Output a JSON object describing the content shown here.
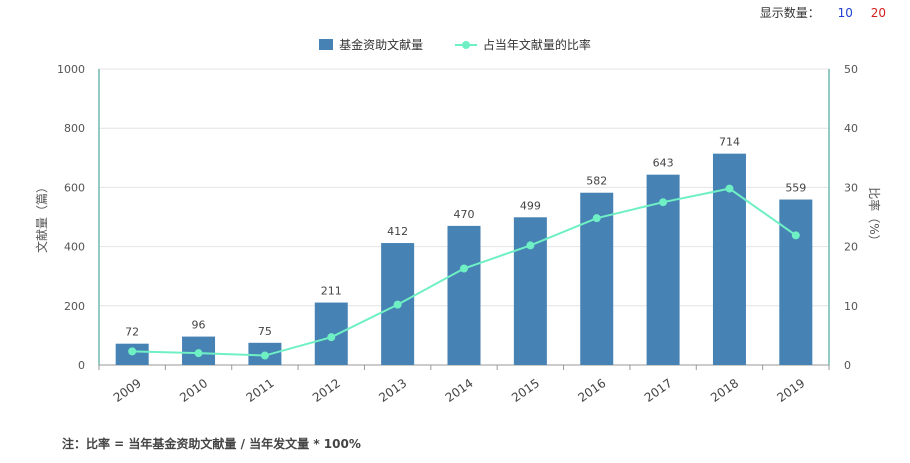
{
  "top_bar": {
    "label": "显示数量：",
    "options": [
      "10",
      "20"
    ]
  },
  "legend": {
    "bar_label": "基金资助文献量",
    "line_label": "占当年文献量的比率"
  },
  "note": "注：比率 = 当年基金资助文献量 / 当年发文量 * 100%",
  "colors": {
    "bar": "#4682b4",
    "line": "#6ff0c4",
    "axis_left": "#2a9a8a",
    "axis_right": "#2a9a8a",
    "option_10": "#1f3fd0",
    "option_20": "#d21f1f"
  },
  "chart_data": {
    "type": "bar",
    "categories": [
      "2009",
      "2010",
      "2011",
      "2012",
      "2013",
      "2014",
      "2015",
      "2016",
      "2017",
      "2018",
      "2019"
    ],
    "series": [
      {
        "name": "基金资助文献量",
        "type": "bar",
        "axis": "left",
        "values": [
          72,
          96,
          75,
          211,
          412,
          470,
          499,
          582,
          643,
          714,
          559
        ],
        "labels": [
          "72",
          "96",
          "75",
          "211",
          "412",
          "470",
          "499",
          "582",
          "643",
          "714",
          "559"
        ]
      },
      {
        "name": "占当年文献量的比率",
        "type": "line",
        "axis": "right",
        "values": [
          2.3,
          2.0,
          1.6,
          4.7,
          10.2,
          16.3,
          20.2,
          24.8,
          27.5,
          29.8,
          21.9
        ]
      }
    ],
    "ylabel": "文献量（篇）",
    "y2label": "比率（%）",
    "ylim": [
      0,
      1000
    ],
    "y2lim": [
      0,
      50
    ],
    "yticks": [
      "0",
      "200",
      "400",
      "600",
      "800",
      "1000"
    ],
    "y2ticks": [
      "0",
      "10",
      "20",
      "30",
      "40",
      "50"
    ],
    "grid": true,
    "legend_position": "top-center"
  }
}
